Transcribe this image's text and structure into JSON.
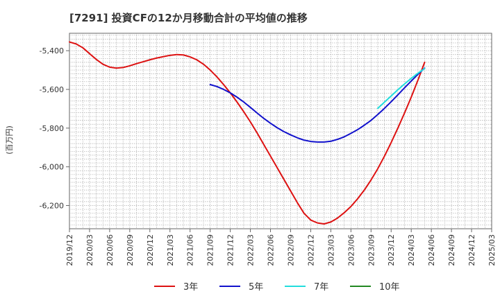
{
  "chart_data": {
    "type": "line",
    "title": "[7291]  投資CFの12か月移動合計の平均値の推移",
    "ylabel": "(百万円)",
    "xlabel": "",
    "ylim": [
      -6320,
      -5310
    ],
    "yticks": [
      -5400,
      -5600,
      -5800,
      -6000,
      -6200
    ],
    "ytick_labels": [
      "-5,400",
      "-5,600",
      "-5,800",
      "-6,000",
      "-6,200"
    ],
    "x_start": "2019-12",
    "x_end": "2025-03",
    "xtick_labels": [
      "2019/12",
      "2020/03",
      "2020/06",
      "2020/09",
      "2020/12",
      "2021/03",
      "2021/06",
      "2021/09",
      "2021/12",
      "2022/03",
      "2022/06",
      "2022/09",
      "2022/12",
      "2023/03",
      "2023/06",
      "2023/09",
      "2023/12",
      "2024/03",
      "2024/06",
      "2024/09",
      "2024/12",
      "2025/03"
    ],
    "grid": true,
    "legend_position": "bottom",
    "series": [
      {
        "name": "3年",
        "color": "#dd1111",
        "points": [
          [
            "2019-12",
            -5355
          ],
          [
            "2020-01",
            -5365
          ],
          [
            "2020-02",
            -5385
          ],
          [
            "2020-03",
            -5415
          ],
          [
            "2020-04",
            -5445
          ],
          [
            "2020-05",
            -5470
          ],
          [
            "2020-06",
            -5485
          ],
          [
            "2020-07",
            -5490
          ],
          [
            "2020-08",
            -5487
          ],
          [
            "2020-09",
            -5478
          ],
          [
            "2020-10",
            -5467
          ],
          [
            "2020-11",
            -5457
          ],
          [
            "2020-12",
            -5447
          ],
          [
            "2021-01",
            -5438
          ],
          [
            "2021-02",
            -5431
          ],
          [
            "2021-03",
            -5424
          ],
          [
            "2021-04",
            -5420
          ],
          [
            "2021-05",
            -5422
          ],
          [
            "2021-06",
            -5432
          ],
          [
            "2021-07",
            -5447
          ],
          [
            "2021-08",
            -5470
          ],
          [
            "2021-09",
            -5500
          ],
          [
            "2021-10",
            -5535
          ],
          [
            "2021-11",
            -5575
          ],
          [
            "2021-12",
            -5618
          ],
          [
            "2022-01",
            -5665
          ],
          [
            "2022-02",
            -5715
          ],
          [
            "2022-03",
            -5768
          ],
          [
            "2022-04",
            -5825
          ],
          [
            "2022-05",
            -5885
          ],
          [
            "2022-06",
            -5945
          ],
          [
            "2022-07",
            -6005
          ],
          [
            "2022-08",
            -6065
          ],
          [
            "2022-09",
            -6125
          ],
          [
            "2022-10",
            -6185
          ],
          [
            "2022-11",
            -6240
          ],
          [
            "2022-12",
            -6275
          ],
          [
            "2023-01",
            -6290
          ],
          [
            "2023-02",
            -6295
          ],
          [
            "2023-03",
            -6285
          ],
          [
            "2023-04",
            -6265
          ],
          [
            "2023-05",
            -6237
          ],
          [
            "2023-06",
            -6205
          ],
          [
            "2023-07",
            -6165
          ],
          [
            "2023-08",
            -6120
          ],
          [
            "2023-09",
            -6068
          ],
          [
            "2023-10",
            -6010
          ],
          [
            "2023-11",
            -5945
          ],
          [
            "2023-12",
            -5875
          ],
          [
            "2024-01",
            -5800
          ],
          [
            "2024-02",
            -5722
          ],
          [
            "2024-03",
            -5640
          ],
          [
            "2024-04",
            -5552
          ],
          [
            "2024-05",
            -5460
          ]
        ]
      },
      {
        "name": "5年",
        "color": "#1111cc",
        "points": [
          [
            "2021-09",
            -5575
          ],
          [
            "2021-10",
            -5585
          ],
          [
            "2021-11",
            -5600
          ],
          [
            "2021-12",
            -5618
          ],
          [
            "2022-01",
            -5640
          ],
          [
            "2022-02",
            -5665
          ],
          [
            "2022-03",
            -5693
          ],
          [
            "2022-04",
            -5722
          ],
          [
            "2022-05",
            -5750
          ],
          [
            "2022-06",
            -5775
          ],
          [
            "2022-07",
            -5798
          ],
          [
            "2022-08",
            -5818
          ],
          [
            "2022-09",
            -5835
          ],
          [
            "2022-10",
            -5850
          ],
          [
            "2022-11",
            -5862
          ],
          [
            "2022-12",
            -5869
          ],
          [
            "2023-01",
            -5872
          ],
          [
            "2023-02",
            -5872
          ],
          [
            "2023-03",
            -5868
          ],
          [
            "2023-04",
            -5858
          ],
          [
            "2023-05",
            -5845
          ],
          [
            "2023-06",
            -5827
          ],
          [
            "2023-07",
            -5808
          ],
          [
            "2023-08",
            -5785
          ],
          [
            "2023-09",
            -5760
          ],
          [
            "2023-10",
            -5730
          ],
          [
            "2023-11",
            -5698
          ],
          [
            "2023-12",
            -5664
          ],
          [
            "2024-01",
            -5628
          ],
          [
            "2024-02",
            -5592
          ],
          [
            "2024-03",
            -5557
          ],
          [
            "2024-04",
            -5522
          ],
          [
            "2024-05",
            -5490
          ]
        ]
      },
      {
        "name": "7年",
        "color": "#22dddd",
        "points": [
          [
            "2023-10",
            -5698
          ],
          [
            "2023-11",
            -5666
          ],
          [
            "2023-12",
            -5634
          ],
          [
            "2024-01",
            -5602
          ],
          [
            "2024-02",
            -5572
          ],
          [
            "2024-03",
            -5543
          ],
          [
            "2024-04",
            -5516
          ],
          [
            "2024-05",
            -5492
          ]
        ]
      },
      {
        "name": "10年",
        "color": "#228822",
        "points": []
      }
    ]
  }
}
